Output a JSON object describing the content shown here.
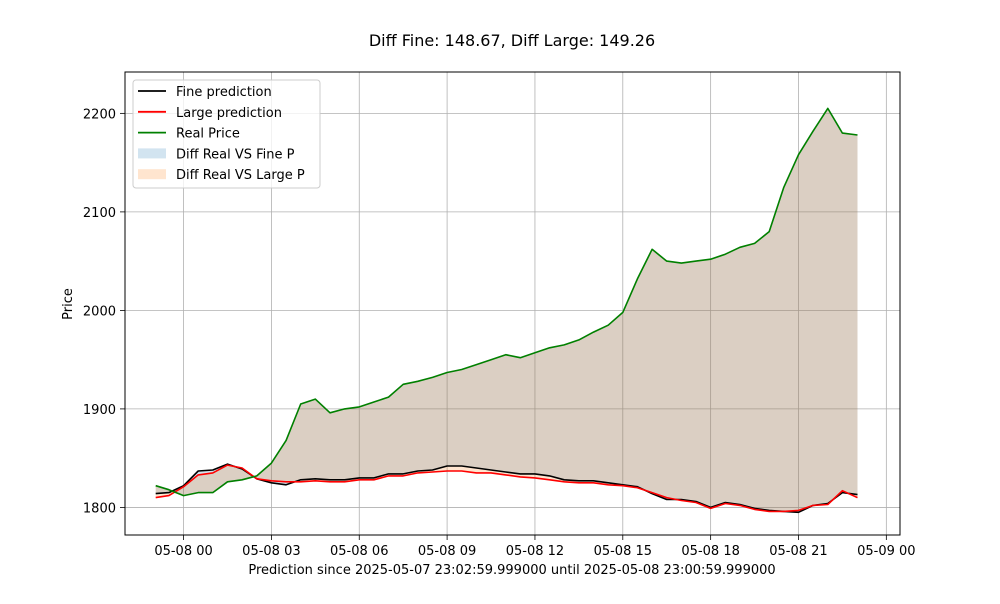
{
  "chart_data": {
    "type": "line",
    "title": "Diff Fine: 148.67, Diff Large: 149.26",
    "xlabel": "Prediction since 2025-05-07 23:02:59.999000 until 2025-05-08 23:00:59.999000",
    "ylabel": "Price",
    "xlim": [
      "2025-05-07 22:00",
      "2025-05-09 00:28"
    ],
    "ylim": [
      1772,
      2242
    ],
    "x_ticks": [
      "2025-05-08 00:00",
      "2025-05-08 03:00",
      "2025-05-08 06:00",
      "2025-05-08 09:00",
      "2025-05-08 12:00",
      "2025-05-08 15:00",
      "2025-05-08 18:00",
      "2025-05-08 21:00",
      "2025-05-09 00:00"
    ],
    "x_tick_labels": [
      "05-08 00",
      "05-08 03",
      "05-08 06",
      "05-08 09",
      "05-08 12",
      "05-08 15",
      "05-08 18",
      "05-08 21",
      "05-09 00"
    ],
    "y_ticks": [
      1800,
      1900,
      2000,
      2100,
      2200
    ],
    "grid": true,
    "legend_position": "upper-left",
    "legend": [
      {
        "label": "Fine prediction",
        "kind": "line",
        "color": "#000000"
      },
      {
        "label": "Large prediction",
        "kind": "line",
        "color": "#ff0000"
      },
      {
        "label": "Real Price",
        "kind": "line",
        "color": "#008000"
      },
      {
        "label": "Diff Real VS Fine P",
        "kind": "fill",
        "color": "#1f77b4"
      },
      {
        "label": "Diff Real VS Large P",
        "kind": "fill",
        "color": "#ff7f0e"
      }
    ],
    "x": [
      "2025-05-07 23:03",
      "2025-05-07 23:30",
      "2025-05-08 00:00",
      "2025-05-08 00:30",
      "2025-05-08 01:00",
      "2025-05-08 01:30",
      "2025-05-08 02:00",
      "2025-05-08 02:30",
      "2025-05-08 03:00",
      "2025-05-08 03:30",
      "2025-05-08 04:00",
      "2025-05-08 04:30",
      "2025-05-08 05:00",
      "2025-05-08 05:30",
      "2025-05-08 06:00",
      "2025-05-08 06:30",
      "2025-05-08 07:00",
      "2025-05-08 07:30",
      "2025-05-08 08:00",
      "2025-05-08 08:30",
      "2025-05-08 09:00",
      "2025-05-08 09:30",
      "2025-05-08 10:00",
      "2025-05-08 10:30",
      "2025-05-08 11:00",
      "2025-05-08 11:30",
      "2025-05-08 12:00",
      "2025-05-08 12:30",
      "2025-05-08 13:00",
      "2025-05-08 13:30",
      "2025-05-08 14:00",
      "2025-05-08 14:30",
      "2025-05-08 15:00",
      "2025-05-08 15:30",
      "2025-05-08 16:00",
      "2025-05-08 16:30",
      "2025-05-08 17:00",
      "2025-05-08 17:30",
      "2025-05-08 18:00",
      "2025-05-08 18:30",
      "2025-05-08 19:00",
      "2025-05-08 19:30",
      "2025-05-08 20:00",
      "2025-05-08 20:30",
      "2025-05-08 21:00",
      "2025-05-08 21:30",
      "2025-05-08 22:00",
      "2025-05-08 22:30",
      "2025-05-08 23:01"
    ],
    "series": [
      {
        "name": "Fine prediction",
        "color": "#000000",
        "values": [
          1814,
          1815,
          1822,
          1837,
          1838,
          1844,
          1839,
          1829,
          1825,
          1823,
          1828,
          1829,
          1828,
          1828,
          1830,
          1830,
          1834,
          1834,
          1837,
          1838,
          1842,
          1842,
          1840,
          1838,
          1836,
          1834,
          1834,
          1832,
          1828,
          1827,
          1827,
          1825,
          1823,
          1821,
          1814,
          1808,
          1808,
          1806,
          1800,
          1805,
          1803,
          1799,
          1797,
          1796,
          1795,
          1802,
          1804,
          1815,
          1813
        ]
      },
      {
        "name": "Large prediction",
        "color": "#ff0000",
        "values": [
          1810,
          1812,
          1821,
          1833,
          1835,
          1843,
          1840,
          1829,
          1827,
          1826,
          1826,
          1827,
          1826,
          1826,
          1828,
          1828,
          1832,
          1832,
          1835,
          1836,
          1837,
          1837,
          1835,
          1835,
          1833,
          1831,
          1830,
          1828,
          1826,
          1825,
          1825,
          1823,
          1822,
          1820,
          1815,
          1810,
          1807,
          1805,
          1799,
          1804,
          1802,
          1798,
          1796,
          1796,
          1797,
          1802,
          1803,
          1817,
          1810
        ]
      },
      {
        "name": "Real Price",
        "color": "#008000",
        "values": [
          1822,
          1818,
          1812,
          1815,
          1815,
          1826,
          1828,
          1832,
          1845,
          1868,
          1905,
          1910,
          1896,
          1900,
          1902,
          1907,
          1912,
          1925,
          1928,
          1932,
          1937,
          1940,
          1945,
          1950,
          1955,
          1952,
          1957,
          1962,
          1965,
          1970,
          1978,
          1985,
          1998,
          2032,
          2062,
          2050,
          2048,
          2050,
          2052,
          2057,
          2064,
          2068,
          2080,
          2125,
          2158,
          2182,
          2205,
          2180,
          2178
        ]
      }
    ]
  }
}
